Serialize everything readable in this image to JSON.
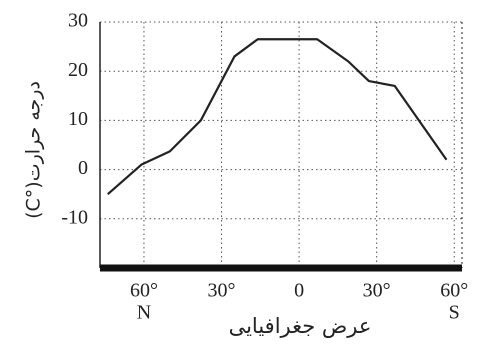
{
  "chart_data": {
    "type": "line",
    "y_label": "درجه حرارت(°C)",
    "x_label": "عرض جغرافیایی",
    "x": [
      74,
      61,
      50,
      38,
      25,
      16,
      -7,
      -19,
      -27,
      -37,
      -57
    ],
    "series": [
      {
        "color": "#222222",
        "values": [
          -5,
          1,
          3.7,
          10,
          23,
          26.5,
          26.5,
          22,
          18,
          17,
          2
        ]
      }
    ],
    "xlim": [
      77,
      -63
    ],
    "xticks": [
      {
        "value": 60,
        "label": "60°"
      },
      {
        "value": 30,
        "label": "30°"
      },
      0,
      {
        "value": -30,
        "label": "30°"
      },
      {
        "value": -60,
        "label": "60°"
      }
    ],
    "x_annotations": [
      {
        "x": 60,
        "text": "N"
      },
      {
        "x": -60,
        "text": "S"
      }
    ],
    "ylim": [
      -20,
      30
    ],
    "yticks": [
      -10,
      0,
      10,
      20,
      30
    ],
    "grid": true
  }
}
